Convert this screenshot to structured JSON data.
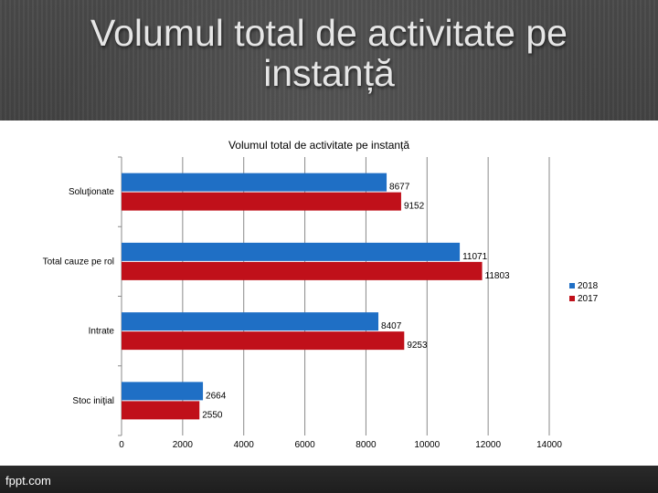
{
  "slide": {
    "title": "Volumul total de activitate pe instanță",
    "footer_logo": "fppt.com"
  },
  "chart_data": {
    "type": "bar",
    "orientation": "horizontal",
    "title": "Volumul total de activitate pe instanță",
    "categories": [
      "Soluţionate",
      "Total cauze pe rol",
      "Intrate",
      "Stoc iniţial"
    ],
    "series": [
      {
        "name": "2018",
        "values": [
          8677,
          11071,
          8407,
          2664
        ],
        "color": "#1f6fc5"
      },
      {
        "name": "2017",
        "values": [
          9152,
          11803,
          9253,
          2550
        ],
        "color": "#c0101a"
      }
    ],
    "xlim": [
      0,
      14000
    ],
    "x_ticks": [
      "0",
      "2000",
      "4000",
      "6000",
      "8000",
      "10000",
      "12000",
      "14000"
    ],
    "grid": true,
    "legend_position": "right",
    "data_labels": true
  }
}
